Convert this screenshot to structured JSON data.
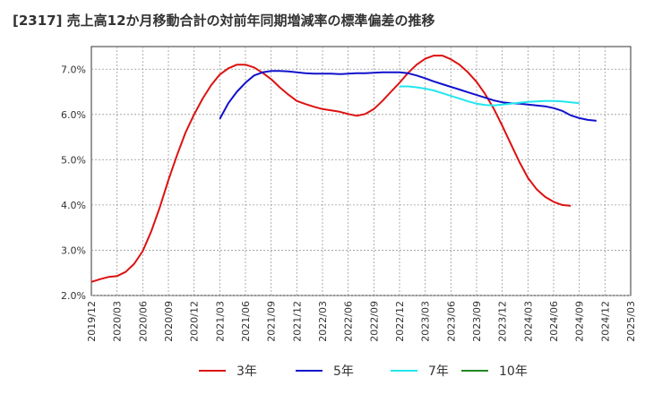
{
  "chart_data": {
    "type": "line",
    "title": "[2317]  売上高12か月移動合計の対前年同期増減率の標準偏差の推移",
    "xlabel": "",
    "ylabel": "",
    "ylim": [
      2.0,
      7.5
    ],
    "y_ticks": [
      "2.0%",
      "3.0%",
      "4.0%",
      "5.0%",
      "6.0%",
      "7.0%"
    ],
    "y_tick_values": [
      2.0,
      3.0,
      4.0,
      5.0,
      6.0,
      7.0
    ],
    "x_ticks": [
      "2019/12",
      "2020/03",
      "2020/06",
      "2020/09",
      "2020/12",
      "2021/03",
      "2021/06",
      "2021/09",
      "2021/12",
      "2022/03",
      "2022/06",
      "2022/09",
      "2022/12",
      "2023/03",
      "2023/06",
      "2023/09",
      "2023/12",
      "2024/03",
      "2024/06",
      "2024/09",
      "2024/12",
      "2025/03"
    ],
    "grid": true,
    "legend_position": "bottom",
    "series": [
      {
        "name": "3年",
        "color": "#dd1111",
        "start": "2019/12",
        "values": [
          2.3,
          2.36,
          2.41,
          2.43,
          2.52,
          2.7,
          2.98,
          3.42,
          3.95,
          4.55,
          5.1,
          5.6,
          6.0,
          6.35,
          6.65,
          6.88,
          7.02,
          7.1,
          7.1,
          7.04,
          6.92,
          6.78,
          6.6,
          6.44,
          6.3,
          6.23,
          6.17,
          6.12,
          6.09,
          6.06,
          6.01,
          5.97,
          6.01,
          6.12,
          6.3,
          6.5,
          6.7,
          6.92,
          7.1,
          7.23,
          7.3,
          7.3,
          7.22,
          7.1,
          6.93,
          6.72,
          6.45,
          6.13,
          5.75,
          5.35,
          4.95,
          4.6,
          4.35,
          4.18,
          4.07,
          4.0,
          3.98
        ]
      },
      {
        "name": "5年",
        "color": "#1111cc",
        "start": "2021/03",
        "values": [
          5.9,
          6.25,
          6.5,
          6.7,
          6.86,
          6.93,
          6.96,
          6.96,
          6.95,
          6.93,
          6.91,
          6.9,
          6.9,
          6.9,
          6.89,
          6.9,
          6.91,
          6.91,
          6.92,
          6.93,
          6.93,
          6.93,
          6.91,
          6.86,
          6.8,
          6.73,
          6.67,
          6.61,
          6.55,
          6.49,
          6.43,
          6.37,
          6.31,
          6.27,
          6.25,
          6.24,
          6.22,
          6.2,
          6.18,
          6.14,
          6.08,
          5.98,
          5.92,
          5.88,
          5.86
        ]
      },
      {
        "name": "7年",
        "color": "#22e6ee",
        "start": "2022/12",
        "values": [
          6.62,
          6.62,
          6.6,
          6.57,
          6.53,
          6.47,
          6.41,
          6.35,
          6.29,
          6.24,
          6.21,
          6.2,
          6.22,
          6.24,
          6.26,
          6.28,
          6.29,
          6.3,
          6.3,
          6.29,
          6.27,
          6.25
        ]
      },
      {
        "name": "10年",
        "color": "#228822",
        "start": "",
        "values": []
      }
    ]
  }
}
